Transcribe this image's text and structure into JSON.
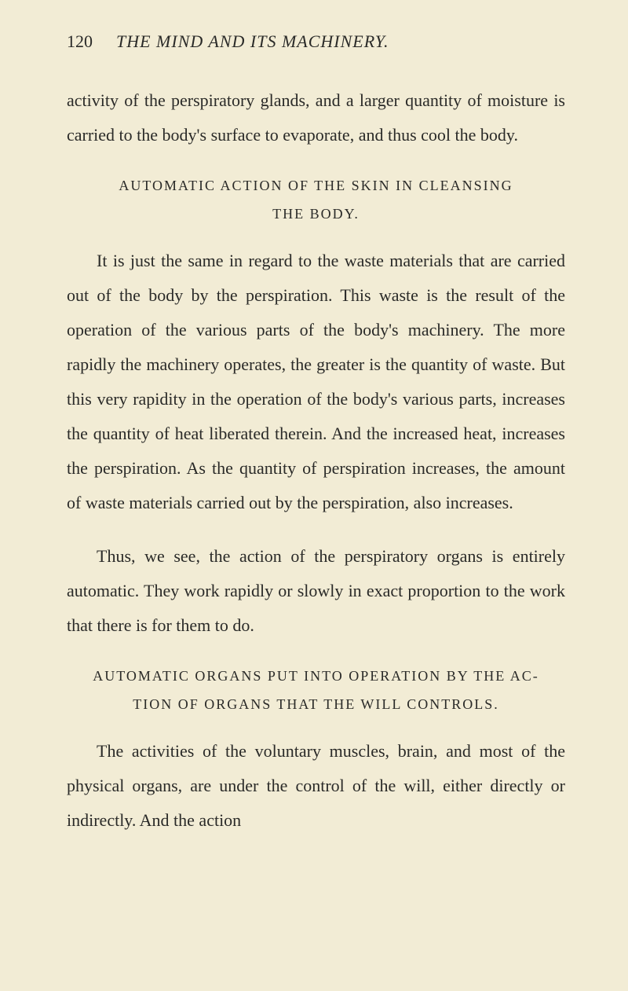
{
  "page": {
    "number": "120",
    "running_title": "THE MIND AND ITS MACHINERY."
  },
  "paragraphs": {
    "p1": "activity of the perspiratory glands, and a larger quantity of moisture is carried to the body's surface to evapor­ate, and thus cool the body.",
    "heading1_line1": "AUTOMATIC ACTION OF THE SKIN IN CLEANSING",
    "heading1_line2": "THE BODY.",
    "p2": "It is just the same in regard to the waste materials that are carried out of the body by the perspiration. This waste is the result of the operation of the various parts of the body's machinery. The more rapidly the machinery operates, the greater is the quantity of waste. But this very rapidity in the operation of the body's various parts, increases the quantity of heat liberated therein. And the increased heat, increases the perspira­tion. As the quantity of perspiration increases, the amount of waste materials carried out by the perspira­tion, also increases.",
    "p3": "Thus, we see, the action of the perspiratory organs is entirely automatic. They work rapidly or slowly in exact proportion to the work that there is for them to do.",
    "heading2_line1": "AUTOMATIC ORGANS PUT INTO OPERATION BY THE AC-",
    "heading2_line2": "TION OF ORGANS THAT THE WILL CONTROLS.",
    "p4": "The activities of the voluntary muscles, brain, and most of the physical organs, are under the control of the will, either directly or indirectly. And the action"
  },
  "colors": {
    "background": "#f2ecd5",
    "text": "#2a2a28"
  }
}
